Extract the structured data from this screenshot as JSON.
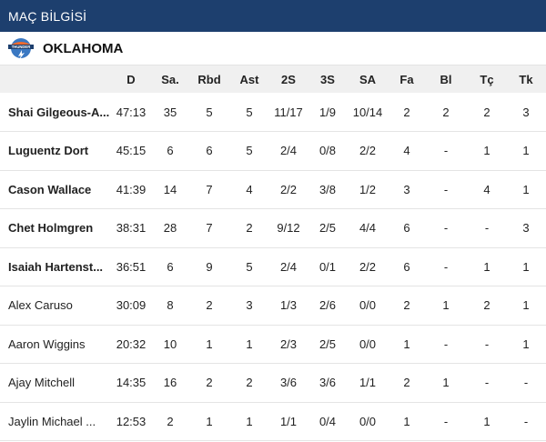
{
  "header": {
    "title": "MAÇ BİLGİSİ"
  },
  "team": {
    "name": "OKLAHOMA",
    "logo_text": "THUNDER",
    "logo_icon": "thunder-logo-icon"
  },
  "colors": {
    "header_bg": "#1d3f6e",
    "table_header_bg": "#f0f0f0",
    "logo_blue": "#3a78c2",
    "logo_orange": "#ef6a2e"
  },
  "table": {
    "columns": [
      "D",
      "Sa.",
      "Rbd",
      "Ast",
      "2S",
      "3S",
      "SA",
      "Fa",
      "Bl",
      "Tç",
      "Tk"
    ],
    "rows": [
      {
        "name": "Shai Gilgeous-A...",
        "stats": [
          "47:13",
          "35",
          "5",
          "5",
          "11/17",
          "1/9",
          "10/14",
          "2",
          "2",
          "2",
          "3"
        ]
      },
      {
        "name": "Luguentz Dort",
        "stats": [
          "45:15",
          "6",
          "6",
          "5",
          "2/4",
          "0/8",
          "2/2",
          "4",
          "-",
          "1",
          "1"
        ]
      },
      {
        "name": "Cason Wallace",
        "stats": [
          "41:39",
          "14",
          "7",
          "4",
          "2/2",
          "3/8",
          "1/2",
          "3",
          "-",
          "4",
          "1"
        ]
      },
      {
        "name": "Chet Holmgren",
        "stats": [
          "38:31",
          "28",
          "7",
          "2",
          "9/12",
          "2/5",
          "4/4",
          "6",
          "-",
          "-",
          "3"
        ]
      },
      {
        "name": "Isaiah Hartenst...",
        "stats": [
          "36:51",
          "6",
          "9",
          "5",
          "2/4",
          "0/1",
          "2/2",
          "6",
          "-",
          "1",
          "1"
        ]
      },
      {
        "name": "Alex Caruso",
        "stats": [
          "30:09",
          "8",
          "2",
          "3",
          "1/3",
          "2/6",
          "0/0",
          "2",
          "1",
          "2",
          "1"
        ]
      },
      {
        "name": "Aaron Wiggins",
        "stats": [
          "20:32",
          "10",
          "1",
          "1",
          "2/3",
          "2/5",
          "0/0",
          "1",
          "-",
          "-",
          "1"
        ]
      },
      {
        "name": "Ajay Mitchell",
        "stats": [
          "14:35",
          "16",
          "2",
          "2",
          "3/6",
          "3/6",
          "1/1",
          "2",
          "1",
          "-",
          "-"
        ]
      },
      {
        "name": "Jaylin Michael ...",
        "stats": [
          "12:53",
          "2",
          "1",
          "1",
          "1/1",
          "0/4",
          "0/0",
          "1",
          "-",
          "1",
          "-"
        ]
      }
    ]
  }
}
